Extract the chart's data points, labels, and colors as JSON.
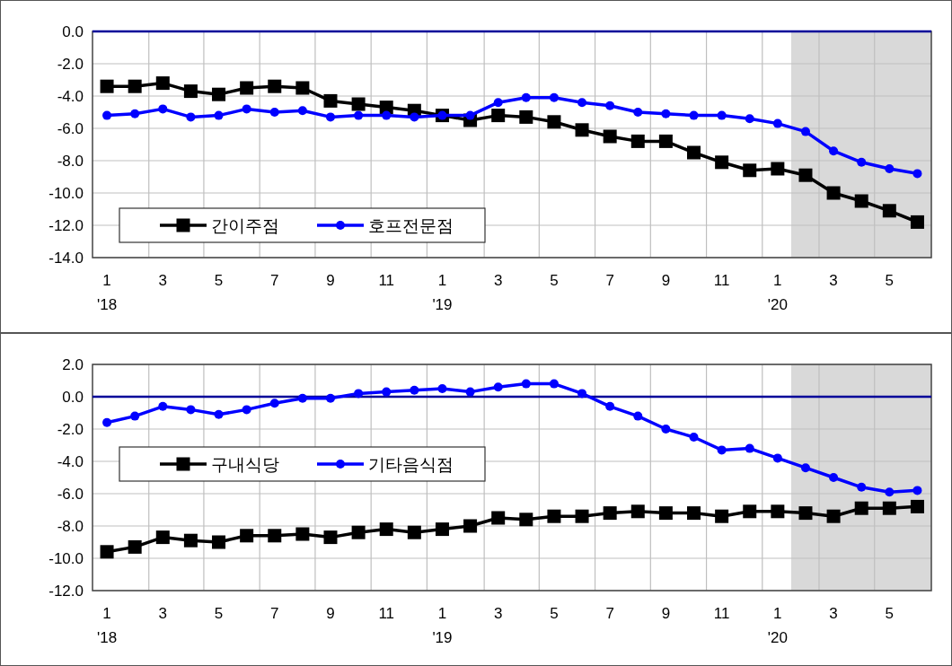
{
  "chart_data": [
    {
      "type": "line",
      "x": [
        "2018-01",
        "2018-02",
        "2018-03",
        "2018-04",
        "2018-05",
        "2018-06",
        "2018-07",
        "2018-08",
        "2018-09",
        "2018-10",
        "2018-11",
        "2018-12",
        "2019-01",
        "2019-02",
        "2019-03",
        "2019-04",
        "2019-05",
        "2019-06",
        "2019-07",
        "2019-08",
        "2019-09",
        "2019-10",
        "2019-11",
        "2019-12",
        "2020-01",
        "2020-02",
        "2020-03",
        "2020-04",
        "2020-05",
        "2020-06"
      ],
      "series": [
        {
          "name": "간이주점",
          "color": "#000000",
          "marker": "square",
          "values": [
            -3.4,
            -3.4,
            -3.2,
            -3.7,
            -3.9,
            -3.5,
            -3.4,
            -3.5,
            -4.3,
            -4.5,
            -4.7,
            -4.9,
            -5.2,
            -5.5,
            -5.2,
            -5.3,
            -5.6,
            -6.1,
            -6.5,
            -6.8,
            -6.8,
            -7.5,
            -8.1,
            -8.6,
            -8.5,
            -8.9,
            -10.0,
            -10.5,
            -11.1,
            -11.8
          ]
        },
        {
          "name": "호프전문점",
          "color": "#0000ff",
          "marker": "circle",
          "values": [
            -5.2,
            -5.1,
            -4.8,
            -5.3,
            -5.2,
            -4.8,
            -5.0,
            -4.9,
            -5.3,
            -5.2,
            -5.2,
            -5.3,
            -5.2,
            -5.2,
            -4.4,
            -4.1,
            -4.1,
            -4.4,
            -4.6,
            -5.0,
            -5.1,
            -5.2,
            -5.2,
            -5.4,
            -5.7,
            -6.2,
            -7.4,
            -8.1,
            -8.5,
            -8.8
          ]
        }
      ],
      "xlim": [
        "2017-12-16",
        "2020-06-16"
      ],
      "xticks": [
        {
          "value": "2018-01",
          "label": "1\n'18"
        },
        {
          "value": "2018-03",
          "label": "3"
        },
        {
          "value": "2018-05",
          "label": "5"
        },
        {
          "value": "2018-07",
          "label": "7"
        },
        {
          "value": "2018-09",
          "label": "9"
        },
        {
          "value": "2018-11",
          "label": "11"
        },
        {
          "value": "2019-01",
          "label": "1\n'19"
        },
        {
          "value": "2019-03",
          "label": "3"
        },
        {
          "value": "2019-05",
          "label": "5"
        },
        {
          "value": "2019-07",
          "label": "7"
        },
        {
          "value": "2019-09",
          "label": "9"
        },
        {
          "value": "2019-11",
          "label": "11"
        },
        {
          "value": "2020-01",
          "label": "1\n'20"
        },
        {
          "value": "2020-03",
          "label": "3"
        },
        {
          "value": "2020-05",
          "label": "5"
        },
        {
          "value": "2018-02-15",
          "label": null
        },
        {
          "value": "2018-04-15",
          "label": null
        },
        {
          "value": "2018-06-15",
          "label": null
        },
        {
          "value": "2018-08-15",
          "label": null
        },
        {
          "value": "2018-10-15",
          "label": null
        },
        {
          "value": "2018-12-15",
          "label": null
        },
        {
          "value": "2019-02-15",
          "label": null
        },
        {
          "value": "2019-04-15",
          "label": null
        },
        {
          "value": "2019-06-15",
          "label": null
        },
        {
          "value": "2019-08-15",
          "label": null
        },
        {
          "value": "2019-10-15",
          "label": null
        },
        {
          "value": "2019-12-15",
          "label": null
        },
        {
          "value": "2020-02-15",
          "label": null
        },
        {
          "value": "2020-04-15",
          "label": null
        }
      ],
      "ylim": [
        -14,
        0
      ],
      "yticks": [
        {
          "value": 0,
          "label": "0.0"
        },
        {
          "value": -2,
          "label": "-2.0"
        },
        {
          "value": -4,
          "label": "-4.0"
        },
        {
          "value": -6,
          "label": "-6.0"
        },
        {
          "value": -8,
          "label": "-8.0"
        },
        {
          "value": -10,
          "label": "-10.0"
        },
        {
          "value": -12,
          "label": "-12.0"
        },
        {
          "value": -14,
          "label": "-14.0"
        }
      ],
      "ref_lines": [
        {
          "axis": "y",
          "value": 0,
          "label": null,
          "color": "#000099"
        }
      ],
      "bands": [
        {
          "axis": "x",
          "from": "2020-01-16",
          "to": "2020-06-16",
          "label": null,
          "color": "#d9d9d9"
        }
      ],
      "grid": true,
      "legend": "bottom left",
      "line_style": "solid"
    },
    {
      "type": "line",
      "x": [
        "2018-01",
        "2018-02",
        "2018-03",
        "2018-04",
        "2018-05",
        "2018-06",
        "2018-07",
        "2018-08",
        "2018-09",
        "2018-10",
        "2018-11",
        "2018-12",
        "2019-01",
        "2019-02",
        "2019-03",
        "2019-04",
        "2019-05",
        "2019-06",
        "2019-07",
        "2019-08",
        "2019-09",
        "2019-10",
        "2019-11",
        "2019-12",
        "2020-01",
        "2020-02",
        "2020-03",
        "2020-04",
        "2020-05",
        "2020-06"
      ],
      "series": [
        {
          "name": "구내식당",
          "color": "#000000",
          "marker": "square",
          "values": [
            -9.6,
            -9.3,
            -8.7,
            -8.9,
            -9.0,
            -8.6,
            -8.6,
            -8.5,
            -8.7,
            -8.4,
            -8.2,
            -8.4,
            -8.2,
            -8.0,
            -7.5,
            -7.6,
            -7.4,
            -7.4,
            -7.2,
            -7.1,
            -7.2,
            -7.2,
            -7.4,
            -7.1,
            -7.1,
            -7.2,
            -7.4,
            -6.9,
            -6.9,
            -6.8
          ]
        },
        {
          "name": "기타음식점",
          "color": "#0000ff",
          "marker": "circle",
          "values": [
            -1.6,
            -1.2,
            -0.6,
            -0.8,
            -1.1,
            -0.8,
            -0.4,
            -0.1,
            -0.1,
            0.2,
            0.3,
            0.4,
            0.5,
            0.3,
            0.6,
            0.8,
            0.8,
            0.2,
            -0.6,
            -1.2,
            -2.0,
            -2.5,
            -3.3,
            -3.2,
            -3.8,
            -4.4,
            -5.0,
            -5.6,
            -5.9,
            -5.8
          ]
        }
      ],
      "xlim": [
        "2017-12-16",
        "2020-06-16"
      ],
      "xticks": [
        {
          "value": "2018-01",
          "label": "1\n'18"
        },
        {
          "value": "2018-03",
          "label": "3"
        },
        {
          "value": "2018-05",
          "label": "5"
        },
        {
          "value": "2018-07",
          "label": "7"
        },
        {
          "value": "2018-09",
          "label": "9"
        },
        {
          "value": "2018-11",
          "label": "11"
        },
        {
          "value": "2019-01",
          "label": "1\n'19"
        },
        {
          "value": "2019-03",
          "label": "3"
        },
        {
          "value": "2019-05",
          "label": "5"
        },
        {
          "value": "2019-07",
          "label": "7"
        },
        {
          "value": "2019-09",
          "label": "9"
        },
        {
          "value": "2019-11",
          "label": "11"
        },
        {
          "value": "2020-01",
          "label": "1\n'20"
        },
        {
          "value": "2020-03",
          "label": "3"
        },
        {
          "value": "2020-05",
          "label": "5"
        },
        {
          "value": "2018-02-15",
          "label": null
        },
        {
          "value": "2018-04-15",
          "label": null
        },
        {
          "value": "2018-06-15",
          "label": null
        },
        {
          "value": "2018-08-15",
          "label": null
        },
        {
          "value": "2018-10-15",
          "label": null
        },
        {
          "value": "2018-12-15",
          "label": null
        },
        {
          "value": "2019-02-15",
          "label": null
        },
        {
          "value": "2019-04-15",
          "label": null
        },
        {
          "value": "2019-06-15",
          "label": null
        },
        {
          "value": "2019-08-15",
          "label": null
        },
        {
          "value": "2019-10-15",
          "label": null
        },
        {
          "value": "2019-12-15",
          "label": null
        },
        {
          "value": "2020-02-15",
          "label": null
        },
        {
          "value": "2020-04-15",
          "label": null
        }
      ],
      "ylim": [
        -12,
        2
      ],
      "yticks": [
        {
          "value": 2,
          "label": "2.0"
        },
        {
          "value": 0,
          "label": "0.0"
        },
        {
          "value": -2,
          "label": "-2.0"
        },
        {
          "value": -4,
          "label": "-4.0"
        },
        {
          "value": -6,
          "label": "-6.0"
        },
        {
          "value": -8,
          "label": "-8.0"
        },
        {
          "value": -10,
          "label": "-10.0"
        },
        {
          "value": -12,
          "label": "-12.0"
        }
      ],
      "ref_lines": [
        {
          "axis": "y",
          "value": 0,
          "label": null,
          "color": "#000099"
        }
      ],
      "bands": [
        {
          "axis": "x",
          "from": "2020-01-16",
          "to": "2020-06-16",
          "label": null,
          "color": "#d9d9d9"
        }
      ],
      "grid": true,
      "legend": "left",
      "line_style": "solid"
    }
  ]
}
